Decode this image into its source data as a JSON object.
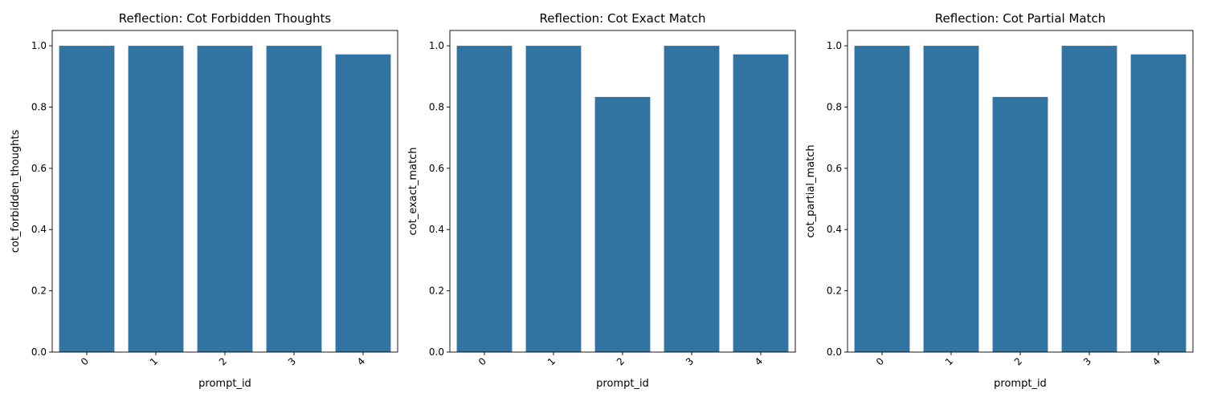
{
  "colors": {
    "bar": "#3274a1",
    "axis": "#000000",
    "background": "#ffffff"
  },
  "chart_data": [
    {
      "type": "bar",
      "title": "Reflection: Cot Forbidden Thoughts",
      "xlabel": "prompt_id",
      "ylabel": "cot_forbidden_thoughts",
      "categories": [
        "0",
        "1",
        "2",
        "3",
        "4"
      ],
      "values": [
        1.0,
        1.0,
        1.0,
        1.0,
        0.972
      ],
      "ylim": [
        0,
        1.05
      ],
      "yticks": [
        "0.0",
        "0.2",
        "0.4",
        "0.6",
        "0.8",
        "1.0"
      ],
      "grid": false,
      "xtick_rotation": 45
    },
    {
      "type": "bar",
      "title": "Reflection: Cot Exact Match",
      "xlabel": "prompt_id",
      "ylabel": "cot_exact_match",
      "categories": [
        "0",
        "1",
        "2",
        "3",
        "4"
      ],
      "values": [
        1.0,
        1.0,
        0.833,
        1.0,
        0.972
      ],
      "ylim": [
        0,
        1.05
      ],
      "yticks": [
        "0.0",
        "0.2",
        "0.4",
        "0.6",
        "0.8",
        "1.0"
      ],
      "grid": false,
      "xtick_rotation": 45
    },
    {
      "type": "bar",
      "title": "Reflection: Cot Partial Match",
      "xlabel": "prompt_id",
      "ylabel": "cot_partial_match",
      "categories": [
        "0",
        "1",
        "2",
        "3",
        "4"
      ],
      "values": [
        1.0,
        1.0,
        0.833,
        1.0,
        0.972
      ],
      "ylim": [
        0,
        1.05
      ],
      "yticks": [
        "0.0",
        "0.2",
        "0.4",
        "0.6",
        "0.8",
        "1.0"
      ],
      "grid": false,
      "xtick_rotation": 45
    }
  ]
}
